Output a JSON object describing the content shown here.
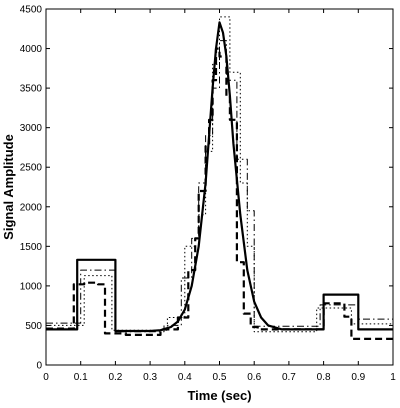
{
  "chart_data": {
    "type": "line",
    "title": "",
    "xlabel": "Time (sec)",
    "ylabel": "Signal Amplitude",
    "xlim": [
      0,
      1
    ],
    "ylim": [
      0,
      4500
    ],
    "xticks": [
      "0",
      "0.1",
      "0.2",
      "0.3",
      "0.4",
      "0.5",
      "0.6",
      "0.7",
      "0.8",
      "0.9",
      "1"
    ],
    "yticks": [
      "0",
      "500",
      "1000",
      "1500",
      "2000",
      "2500",
      "3000",
      "3500",
      "4000",
      "4500"
    ],
    "grid": false,
    "legend": "none",
    "series": [
      {
        "style": "solid",
        "x": [
          0,
          0.09,
          0.09,
          0.2,
          0.2,
          0.3,
          0.33,
          0.36,
          0.38,
          0.4,
          0.42,
          0.44,
          0.46,
          0.47,
          0.48,
          0.49,
          0.5,
          0.51,
          0.52,
          0.53,
          0.54,
          0.56,
          0.58,
          0.6,
          0.62,
          0.64,
          0.68,
          0.8,
          0.8,
          0.9,
          0.9,
          1
        ],
        "y": [
          450,
          450,
          1330,
          1330,
          430,
          430,
          440,
          480,
          550,
          700,
          1000,
          1500,
          2300,
          2900,
          3500,
          4000,
          4330,
          4200,
          3900,
          3400,
          2800,
          1900,
          1200,
          800,
          600,
          500,
          450,
          450,
          890,
          890,
          450,
          450
        ]
      },
      {
        "style": "dashed",
        "x": [
          0,
          0.08,
          0.08,
          0.11,
          0.11,
          0.15,
          0.15,
          0.17,
          0.17,
          0.23,
          0.23,
          0.33,
          0.33,
          0.38,
          0.38,
          0.41,
          0.41,
          0.43,
          0.43,
          0.44,
          0.44,
          0.46,
          0.46,
          0.47,
          0.47,
          0.48,
          0.48,
          0.49,
          0.49,
          0.5,
          0.5,
          0.52,
          0.52,
          0.53,
          0.53,
          0.55,
          0.55,
          0.57,
          0.57,
          0.59,
          0.59,
          0.61,
          0.61,
          0.8,
          0.8,
          0.86,
          0.86,
          0.88,
          0.88,
          1
        ],
        "y": [
          460,
          460,
          1020,
          1020,
          1040,
          1040,
          1020,
          1020,
          400,
          400,
          380,
          380,
          450,
          450,
          600,
          600,
          1200,
          1200,
          1600,
          1600,
          2200,
          2200,
          2800,
          2800,
          3100,
          3100,
          3600,
          3600,
          4000,
          4000,
          3900,
          3900,
          3400,
          3400,
          3100,
          3100,
          1300,
          1300,
          650,
          650,
          480,
          480,
          450,
          450,
          780,
          780,
          610,
          610,
          330,
          330
        ]
      },
      {
        "style": "dashdot",
        "x": [
          0,
          0.1,
          0.1,
          0.2,
          0.2,
          0.34,
          0.34,
          0.39,
          0.39,
          0.42,
          0.42,
          0.44,
          0.44,
          0.46,
          0.46,
          0.48,
          0.48,
          0.5,
          0.5,
          0.52,
          0.52,
          0.55,
          0.55,
          0.58,
          0.58,
          0.6,
          0.6,
          0.79,
          0.79,
          0.9,
          0.9,
          1
        ],
        "y": [
          530,
          530,
          1200,
          1200,
          420,
          420,
          500,
          500,
          1100,
          1100,
          1600,
          1600,
          2300,
          2300,
          2900,
          2900,
          3500,
          3500,
          4100,
          4100,
          3600,
          3600,
          2600,
          2600,
          1950,
          1950,
          490,
          490,
          760,
          760,
          580,
          580
        ]
      },
      {
        "style": "dotted",
        "x": [
          0,
          0.11,
          0.11,
          0.19,
          0.19,
          0.35,
          0.35,
          0.4,
          0.4,
          0.44,
          0.44,
          0.46,
          0.46,
          0.48,
          0.48,
          0.5,
          0.5,
          0.53,
          0.53,
          0.56,
          0.56,
          0.58,
          0.58,
          0.6,
          0.6,
          0.78,
          0.78,
          0.88,
          0.88,
          1
        ],
        "y": [
          500,
          500,
          1130,
          1130,
          440,
          440,
          600,
          600,
          1500,
          1500,
          1900,
          1900,
          2700,
          2700,
          3800,
          3800,
          4400,
          4400,
          3700,
          3700,
          2300,
          2300,
          1500,
          1500,
          420,
          420,
          720,
          720,
          520,
          520
        ]
      }
    ]
  }
}
